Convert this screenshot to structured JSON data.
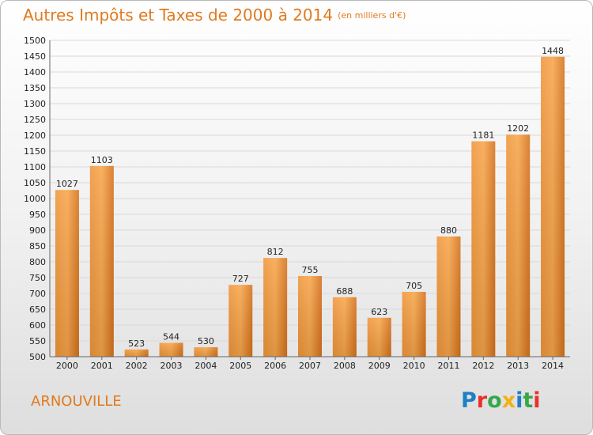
{
  "header": {
    "title": "Autres Impôts et Taxes de 2000 à 2014",
    "unit": "(en milliers d'€)"
  },
  "footer": {
    "commune": "ARNOUVILLE",
    "logo_letters": [
      "P",
      "r",
      "o",
      "x",
      "i",
      "t",
      "i"
    ]
  },
  "colors": {
    "accent": "#e07a1f",
    "bar_light": "#f7a64b",
    "bar_dark": "#d6711a"
  },
  "chart_data": {
    "type": "bar",
    "categories": [
      "2000",
      "2001",
      "2002",
      "2003",
      "2004",
      "2005",
      "2006",
      "2007",
      "2008",
      "2009",
      "2010",
      "2011",
      "2012",
      "2013",
      "2014"
    ],
    "values": [
      1027,
      1103,
      523,
      544,
      530,
      727,
      812,
      755,
      688,
      623,
      705,
      880,
      1181,
      1202,
      1448
    ],
    "ylim": [
      500,
      1500
    ],
    "yticks": [
      500,
      550,
      600,
      650,
      700,
      750,
      800,
      850,
      900,
      950,
      1000,
      1050,
      1100,
      1150,
      1200,
      1250,
      1300,
      1350,
      1400,
      1450,
      1500
    ],
    "grid": true
  }
}
